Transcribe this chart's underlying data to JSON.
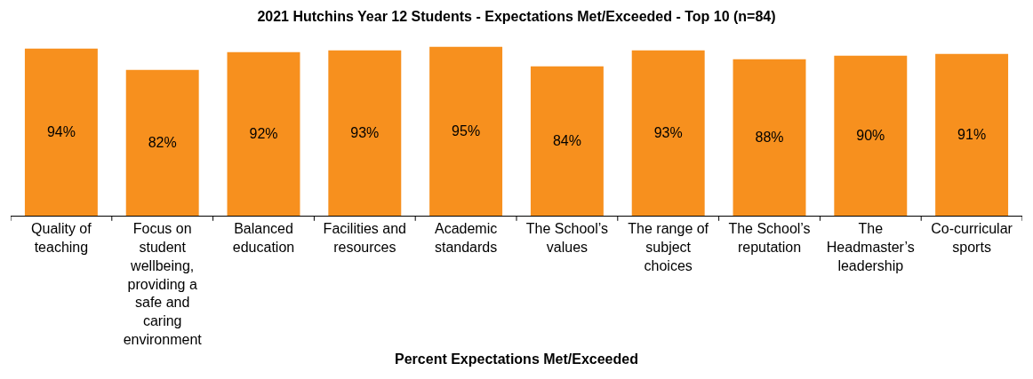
{
  "chart_data": {
    "type": "bar",
    "title": "2021 Hutchins Year 12 Students - Expectations Met/Exceeded - Top 10 (n=84)",
    "xlabel": "Percent Expectations Met/Exceeded",
    "categories": [
      "Quality of teaching",
      "Focus on student wellbeing, providing a safe and caring environment",
      "Balanced education",
      "Facilities and resources",
      "Academic standards",
      "The School’s values",
      "The range of subject choices",
      "The School’s reputation",
      "The Headmaster’s leadership",
      "Co-curricular sports"
    ],
    "values": [
      94,
      82,
      92,
      93,
      95,
      84,
      93,
      88,
      90,
      91
    ],
    "value_labels": [
      "94%",
      "82%",
      "92%",
      "93%",
      "95%",
      "84%",
      "93%",
      "88%",
      "90%",
      "91%"
    ],
    "color": "#f7901e",
    "legend": false
  }
}
